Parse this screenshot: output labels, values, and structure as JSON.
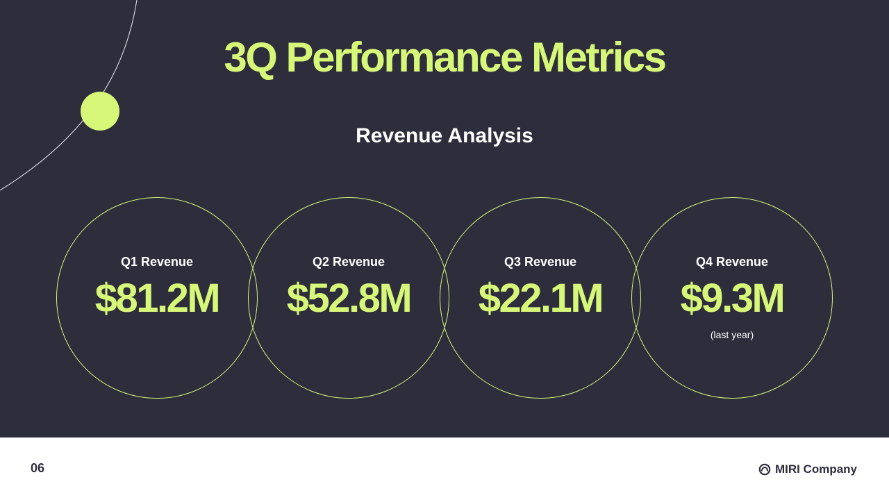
{
  "slide": {
    "title": "3Q Performance Metrics",
    "subtitle": "Revenue Analysis"
  },
  "metrics": [
    {
      "label": "Q1 Revenue",
      "value": "$81.2M",
      "note": ""
    },
    {
      "label": "Q2 Revenue",
      "value": "$52.8M",
      "note": ""
    },
    {
      "label": "Q3 Revenue",
      "value": "$22.1M",
      "note": ""
    },
    {
      "label": "Q4 Revenue",
      "value": "$9.3M",
      "note": "(last year)"
    }
  ],
  "footer": {
    "page_number": "06",
    "company_name": "MIRI Company",
    "company_icon": "company-logo-icon"
  },
  "colors": {
    "background": "#2d2d3c",
    "accent": "#d7f779",
    "footer_background": "#ffffff",
    "text_light": "#ffffff",
    "text_dark": "#2d2d3c"
  }
}
